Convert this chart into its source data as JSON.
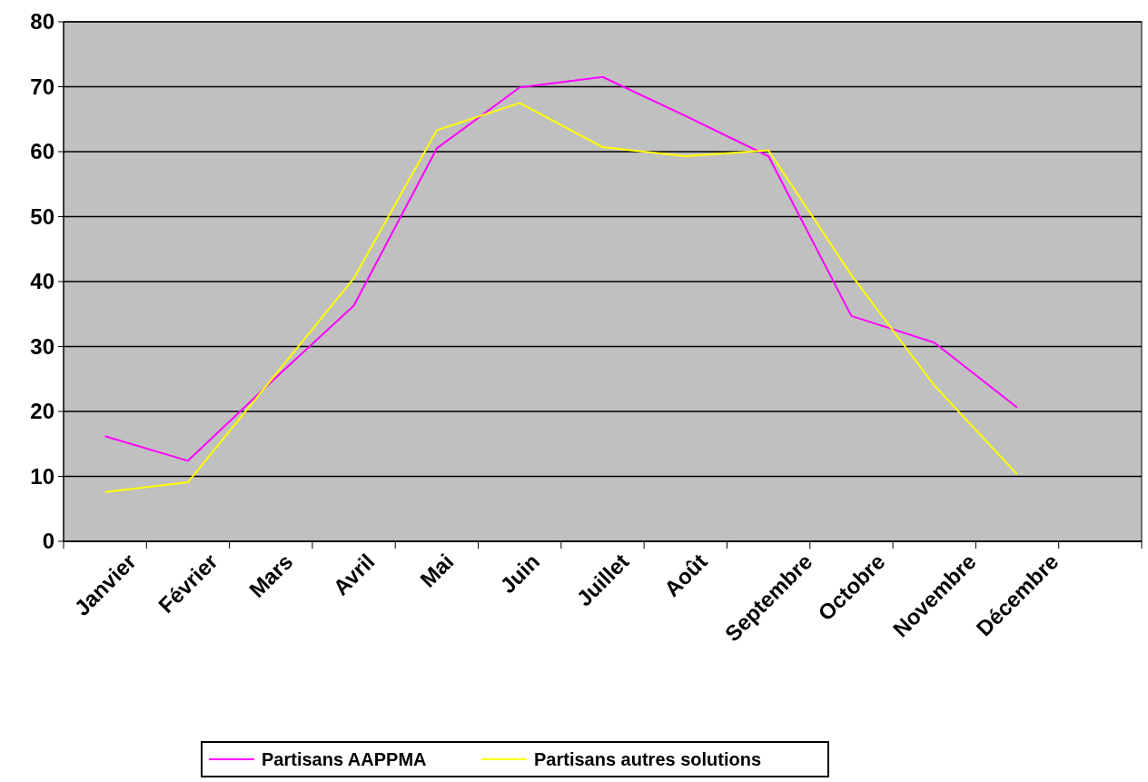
{
  "chart_data": {
    "type": "line",
    "categories": [
      "Janvier",
      "Février",
      "Mars",
      "Avril",
      "Mai",
      "Juin",
      "Juillet",
      "Août",
      "Septembre",
      "Octobre",
      "Novembre",
      "Décembre"
    ],
    "series": [
      {
        "name": "Partisans AAPPMA",
        "color": "#ff00ff",
        "values": [
          16.2,
          12.4,
          24.5,
          36.3,
          60.5,
          69.9,
          71.5,
          65.5,
          59.3,
          34.7,
          30.6,
          20.6
        ]
      },
      {
        "name": "Partisans autres solutions",
        "color": "#ffff00",
        "values": [
          7.6,
          9.1,
          24.8,
          40.5,
          63.3,
          67.5,
          60.7,
          59.3,
          60.2,
          41,
          24,
          10.3
        ]
      }
    ],
    "ylim": [
      0,
      80
    ],
    "yticks": [
      0,
      10,
      20,
      30,
      40,
      50,
      60,
      70,
      80
    ],
    "grid": "y",
    "legend": "bottom",
    "marker": "none"
  }
}
